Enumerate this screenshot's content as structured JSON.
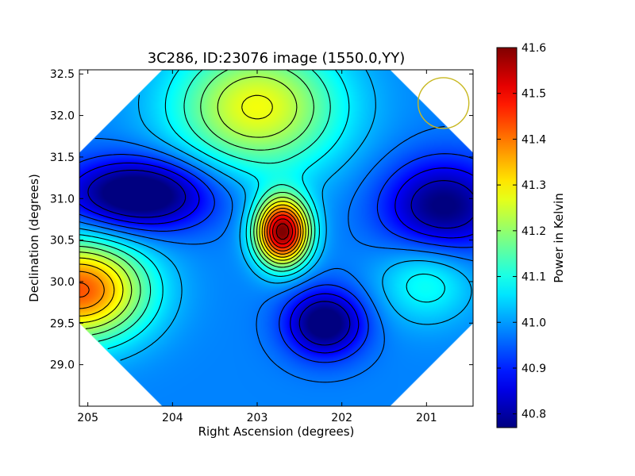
{
  "chart_data": {
    "type": "heatmap",
    "title": "3C286, ID:23076 image (1550.0,YY)",
    "xlabel": "Right Ascension (degrees)",
    "ylabel": "Declination (degrees)",
    "colorbar_label": "Power in Kelvin",
    "xlim": [
      205.1,
      200.45
    ],
    "ylim": [
      28.5,
      32.55
    ],
    "x_ticks": [
      205,
      204,
      203,
      202,
      201
    ],
    "y_ticks": [
      29.0,
      29.5,
      30.0,
      30.5,
      31.0,
      31.5,
      32.0,
      32.5
    ],
    "y_tick_labels": [
      "29.0",
      "29.5",
      "30.0",
      "30.5",
      "31.0",
      "31.5",
      "32.0",
      "32.5"
    ],
    "colorbar_range": [
      40.77,
      41.6
    ],
    "colorbar_ticks": [
      40.8,
      40.9,
      41.0,
      41.1,
      41.2,
      41.3,
      41.4,
      41.5,
      41.6
    ],
    "colorbar_tick_labels": [
      "40.8",
      "40.9",
      "41.0",
      "41.1",
      "41.2",
      "41.3",
      "41.4",
      "41.5",
      "41.6"
    ],
    "colormap": "jet",
    "contour_color": "#000000",
    "sources": [
      {
        "ra": 202.7,
        "dec": 30.6,
        "amplitude": 0.62,
        "sigma_ra": 0.22,
        "sigma_dec": 0.28
      },
      {
        "ra": 205.1,
        "dec": 29.9,
        "amplitude": 0.45,
        "sigma_ra": 0.55,
        "sigma_dec": 0.42
      },
      {
        "ra": 203.0,
        "dec": 32.1,
        "amplitude": 0.3,
        "sigma_ra": 0.7,
        "sigma_dec": 0.55
      },
      {
        "ra": 204.4,
        "dec": 31.05,
        "amplitude": -0.28,
        "sigma_ra": 0.6,
        "sigma_dec": 0.3
      },
      {
        "ra": 202.2,
        "dec": 29.5,
        "amplitude": -0.25,
        "sigma_ra": 0.32,
        "sigma_dec": 0.28
      },
      {
        "ra": 200.8,
        "dec": 30.9,
        "amplitude": -0.22,
        "sigma_ra": 0.5,
        "sigma_dec": 0.4
      },
      {
        "ra": 201.0,
        "dec": 30.0,
        "amplitude": 0.12,
        "sigma_ra": 0.4,
        "sigma_dec": 0.35
      }
    ],
    "base_level": 40.98,
    "contour_levels": [
      40.82,
      40.87,
      40.92,
      40.97,
      41.02,
      41.07,
      41.12,
      41.17,
      41.22,
      41.27,
      41.32,
      41.37,
      41.42,
      41.47,
      41.52,
      41.57
    ],
    "mask": "diamond",
    "beam": {
      "ra": 200.8,
      "dec": 32.15,
      "radius_deg": 0.3,
      "color": "#c8b820"
    }
  }
}
